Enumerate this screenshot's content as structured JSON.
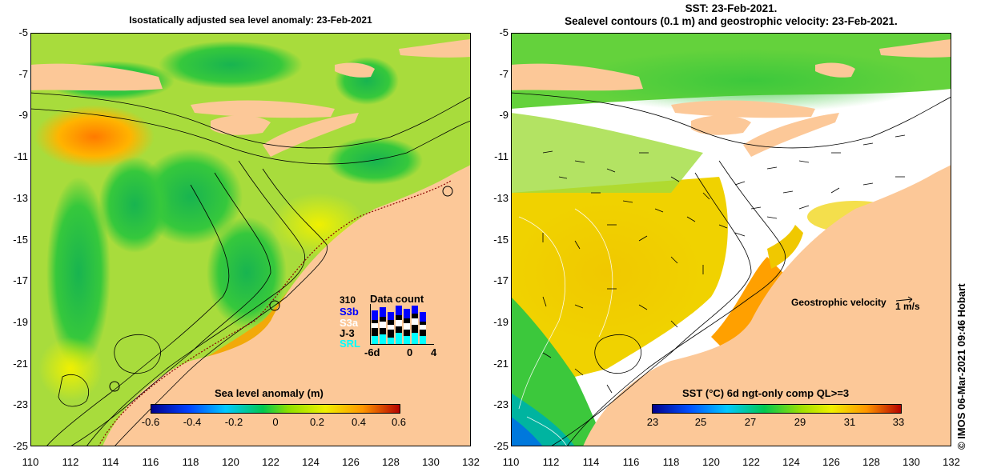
{
  "left_panel": {
    "title": "Isostatically adjusted sea level anomaly: 23-Feb-2021",
    "colorbar": {
      "label": "Sea level anomaly (m)",
      "ticks": [
        "-0.6",
        "-0.4",
        "-0.2",
        "0",
        "0.2",
        "0.4",
        "0.6"
      ],
      "range": [
        -0.6,
        0.6
      ]
    },
    "data_count": {
      "title": "Data count",
      "max": "310",
      "missions": [
        "S3b",
        "S3a",
        "J-3",
        "SRL"
      ],
      "colors": [
        "#0000ff",
        "#ffffff",
        "#000000",
        "#00ffff"
      ],
      "axis_ticks": [
        "-6d",
        "0",
        "4"
      ]
    }
  },
  "right_panel": {
    "title_line1": "SST: 23-Feb-2021.",
    "title_line2": "Sealevel contours (0.1 m) and geostrophic velocity: 23-Feb-2021.",
    "colorbar": {
      "label": "SST (°C) 6d ngt-only comp QL>=3",
      "ticks": [
        "23",
        "25",
        "27",
        "29",
        "31",
        "33"
      ],
      "range": [
        23,
        33
      ]
    },
    "velocity_legend": {
      "label": "Geostrophic velocity",
      "scale": "1 m/s"
    }
  },
  "axes": {
    "lat_ticks": [
      "-5",
      "-7",
      "-9",
      "-11",
      "-13",
      "-15",
      "-17",
      "-19",
      "-21",
      "-23",
      "-25"
    ],
    "lon_ticks": [
      "110",
      "112",
      "114",
      "116",
      "118",
      "120",
      "122",
      "124",
      "126",
      "128",
      "130",
      "132"
    ]
  },
  "credit": "© IMOS 06-Mar-2021 09:46 Hobart",
  "colors": {
    "land": "#fcc898",
    "sla_background": "#b4e03c",
    "sst_background": "#ffffff"
  }
}
